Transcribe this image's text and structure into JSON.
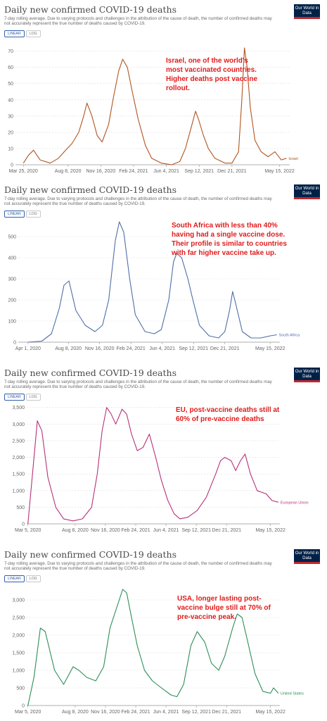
{
  "toggles": [
    "LINEAR",
    "LOG"
  ],
  "logo_text": "Our World in Data",
  "chart_data": [
    {
      "type": "line",
      "title": "Daily new confirmed COVID-19 deaths",
      "subtitle": "7-day rolling average. Due to varying protocols and challenges in the attribution of the cause of death, the number of confirmed deaths may not accurately represent the true number of deaths caused by COVID-19.",
      "color": "#b0551f",
      "series": [
        {
          "name": "Israel",
          "x": [
            "2020-03-25",
            "2020-04-10",
            "2020-04-25",
            "2020-05-15",
            "2020-06-15",
            "2020-07-10",
            "2020-08-01",
            "2020-08-20",
            "2020-09-10",
            "2020-09-25",
            "2020-10-05",
            "2020-10-20",
            "2020-11-05",
            "2020-11-20",
            "2020-12-10",
            "2020-12-25",
            "2021-01-10",
            "2021-01-22",
            "2021-02-05",
            "2021-02-20",
            "2021-03-10",
            "2021-04-01",
            "2021-04-20",
            "2021-05-20",
            "2021-06-20",
            "2021-07-15",
            "2021-08-01",
            "2021-08-20",
            "2021-09-01",
            "2021-09-10",
            "2021-09-25",
            "2021-10-10",
            "2021-10-30",
            "2021-11-30",
            "2021-12-21",
            "2022-01-10",
            "2022-01-20",
            "2022-01-28",
            "2022-02-05",
            "2022-02-15",
            "2022-03-01",
            "2022-03-20",
            "2022-04-10",
            "2022-05-01",
            "2022-05-20",
            "2022-06-05"
          ],
          "y": [
            1,
            6,
            9,
            3,
            1,
            4,
            9,
            13,
            20,
            30,
            38,
            30,
            18,
            14,
            25,
            42,
            58,
            65,
            60,
            45,
            28,
            12,
            4,
            1,
            0,
            2,
            10,
            24,
            33,
            28,
            18,
            10,
            4,
            1,
            1,
            8,
            40,
            72,
            60,
            35,
            15,
            8,
            5,
            8,
            3,
            4
          ]
        }
      ],
      "x_ticks": [
        "Mar 25, 2020",
        "Aug 8, 2020",
        "Nov 16, 2020",
        "Feb 24, 2021",
        "Jun 4, 2021",
        "Sep 12, 2021",
        "Dec 21, 2021",
        "May 15, 2022"
      ],
      "y_ticks": [
        "0",
        "10",
        "20",
        "30",
        "40",
        "50",
        "60",
        "70"
      ],
      "ylim": [
        0,
        72
      ],
      "grid": true,
      "annotation": "Israel, one of the world's most vaccinated countries.  Higher deaths post vaccine rollout."
    },
    {
      "type": "line",
      "title": "Daily new confirmed COVID-19 deaths",
      "subtitle": "7-day rolling average. Due to varying protocols and challenges in the attribution of the cause of death, the number of confirmed deaths may not accurately represent the true number of deaths caused by COVID-19.",
      "color": "#4f6fa8",
      "series": [
        {
          "name": "South Africa",
          "x": [
            "2020-04-01",
            "2020-05-15",
            "2020-06-15",
            "2020-07-10",
            "2020-07-25",
            "2020-08-10",
            "2020-09-01",
            "2020-10-01",
            "2020-11-01",
            "2020-11-25",
            "2020-12-15",
            "2021-01-05",
            "2021-01-18",
            "2021-02-01",
            "2021-02-20",
            "2021-03-10",
            "2021-04-10",
            "2021-05-10",
            "2021-06-01",
            "2021-06-25",
            "2021-07-10",
            "2021-07-20",
            "2021-08-05",
            "2021-08-25",
            "2021-09-10",
            "2021-10-01",
            "2021-11-01",
            "2021-12-01",
            "2021-12-21",
            "2022-01-05",
            "2022-01-15",
            "2022-01-25",
            "2022-02-15",
            "2022-03-15",
            "2022-04-15",
            "2022-05-15",
            "2022-06-05"
          ],
          "y": [
            0,
            5,
            40,
            160,
            270,
            290,
            150,
            80,
            50,
            80,
            200,
            480,
            570,
            520,
            300,
            130,
            50,
            40,
            60,
            200,
            380,
            420,
            400,
            300,
            200,
            80,
            30,
            20,
            50,
            150,
            240,
            180,
            50,
            20,
            20,
            30,
            35
          ]
        }
      ],
      "x_ticks": [
        "Apr 1, 2020",
        "Aug 8, 2020",
        "Nov 16, 2020",
        "Feb 24, 2021",
        "Jun 4, 2021",
        "Sep 12, 2021",
        "Dec 21, 2021",
        "May 15, 2022"
      ],
      "y_ticks": [
        "0",
        "100",
        "200",
        "300",
        "400",
        "500"
      ],
      "ylim": [
        0,
        580
      ],
      "grid": true,
      "annotation": "South Africa with less than 40% having had a single vaccine dose.  Their profile is similar to countries with far higher vaccine take up."
    },
    {
      "type": "line",
      "title": "Daily new confirmed COVID-19 deaths",
      "subtitle": "7-day rolling average. Due to varying protocols and challenges in the attribution of the cause of death, the number of confirmed deaths may not accurately represent the true number of deaths caused by COVID-19.",
      "color": "#b7317a",
      "series": [
        {
          "name": "European Union",
          "x": [
            "2020-03-05",
            "2020-03-20",
            "2020-04-05",
            "2020-04-20",
            "2020-05-10",
            "2020-06-05",
            "2020-07-01",
            "2020-08-01",
            "2020-09-01",
            "2020-10-01",
            "2020-10-20",
            "2020-11-05",
            "2020-11-20",
            "2020-12-05",
            "2020-12-20",
            "2021-01-10",
            "2021-01-25",
            "2021-02-10",
            "2021-03-01",
            "2021-03-20",
            "2021-04-10",
            "2021-05-01",
            "2021-05-20",
            "2021-06-10",
            "2021-07-01",
            "2021-07-20",
            "2021-08-15",
            "2021-09-15",
            "2021-10-15",
            "2021-11-15",
            "2021-12-01",
            "2021-12-15",
            "2022-01-05",
            "2022-01-20",
            "2022-02-05",
            "2022-02-20",
            "2022-03-10",
            "2022-04-01",
            "2022-05-01",
            "2022-05-20",
            "2022-06-10"
          ],
          "y": [
            0,
            1500,
            3100,
            2800,
            1400,
            500,
            150,
            90,
            150,
            500,
            1500,
            2800,
            3500,
            3300,
            3000,
            3450,
            3300,
            2700,
            2200,
            2300,
            2700,
            2000,
            1300,
            700,
            300,
            150,
            200,
            400,
            800,
            1500,
            1900,
            2000,
            1900,
            1600,
            1900,
            2100,
            1500,
            1000,
            900,
            700,
            650
          ]
        }
      ],
      "x_ticks": [
        "Mar 5, 2020",
        "Aug 8, 2020",
        "Nov 16, 2020",
        "Feb 24, 2021",
        "Jun 4, 2021",
        "Sep 12, 2021",
        "Dec 21, 2021",
        "May 15, 2022"
      ],
      "y_ticks": [
        "0",
        "500",
        "1,000",
        "1,500",
        "2,000",
        "2,500",
        "3,000",
        "3,500"
      ],
      "ylim": [
        0,
        3600
      ],
      "grid": true,
      "annotation": "EU, post-vaccine deaths still at 60% of pre-vaccine deaths"
    },
    {
      "type": "line",
      "title": "Daily new confirmed COVID-19 deaths",
      "subtitle": "7-day rolling average. Due to varying protocols and challenges in the attribution of the cause of death, the number of confirmed deaths may not accurately represent the true number of deaths caused by COVID-19.",
      "color": "#2e8e59",
      "series": [
        {
          "name": "United States",
          "x": [
            "2020-03-05",
            "2020-03-25",
            "2020-04-15",
            "2020-05-01",
            "2020-06-01",
            "2020-07-01",
            "2020-08-01",
            "2020-08-20",
            "2020-09-15",
            "2020-10-15",
            "2020-11-10",
            "2020-12-01",
            "2020-12-20",
            "2021-01-12",
            "2021-01-25",
            "2021-02-10",
            "2021-03-01",
            "2021-03-25",
            "2021-04-20",
            "2021-05-20",
            "2021-06-20",
            "2021-07-10",
            "2021-08-01",
            "2021-08-25",
            "2021-09-15",
            "2021-10-10",
            "2021-11-01",
            "2021-11-25",
            "2021-12-15",
            "2022-01-10",
            "2022-01-25",
            "2022-02-10",
            "2022-03-01",
            "2022-03-25",
            "2022-04-20",
            "2022-05-15",
            "2022-05-25",
            "2022-06-10"
          ],
          "y": [
            0,
            800,
            2200,
            2100,
            1000,
            600,
            1100,
            1000,
            800,
            700,
            1100,
            2200,
            2700,
            3300,
            3200,
            2500,
            1700,
            1000,
            700,
            500,
            300,
            250,
            600,
            1700,
            2100,
            1800,
            1200,
            1000,
            1400,
            2200,
            2600,
            2500,
            1800,
            900,
            400,
            350,
            500,
            350
          ]
        }
      ],
      "x_ticks": [
        "Mar 5, 2020",
        "Aug 8, 2020",
        "Nov 16, 2020",
        "Feb 24, 2021",
        "Jun 4, 2021",
        "Sep 12, 2021",
        "Dec 21, 2021",
        "May 15, 2022"
      ],
      "y_ticks": [
        "0",
        "500",
        "1,000",
        "1,500",
        "2,000",
        "2,500",
        "3,000"
      ],
      "ylim": [
        0,
        3400
      ],
      "grid": true,
      "annotation": "USA, longer lasting post-vaccine bulge still at 70% of pre-vaccine peak."
    }
  ]
}
